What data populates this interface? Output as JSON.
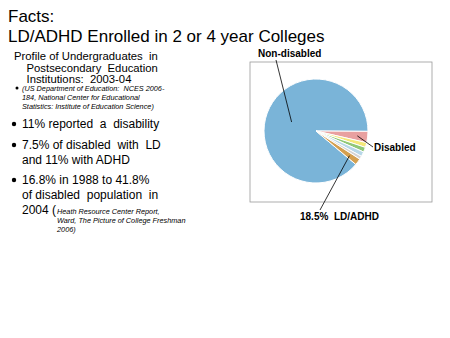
{
  "chart_data": {
    "type": "pie",
    "title": "Facts:\nLD/ADHD Enrolled in 2 or 4 year Colleges",
    "subtitle": "Profile of Undergraduates  in\n    Postsecondary  Education\n    Institutions:  2003-04",
    "values": [
      89,
      3.5,
      1.5,
      1.5,
      1.5,
      1.0,
      2.0
    ],
    "colors": [
      "#7ab4d8",
      "#e8a0a0",
      "#f5e87a",
      "#90c878",
      "#b8d8e8",
      "#d4d4d4",
      "#d4a050"
    ],
    "annotations": [
      "(US Department of Education:  NCES 2006-\n184, National Center for Educational\nStatistics: Institute of Education Science)",
      "11% reported  a  disability",
      "7.5% of disabled  with  LD\nand 11% with ADHD",
      "16.8% in 1988 to 41.8%\nof disabled  population  in\n2004 (",
      "Heath Resource Center Report,\nWard, The Picture of College Freshman\n2006)",
      "Non-disabled",
      "Disabled",
      "18.5%  LD/ADHD"
    ]
  }
}
